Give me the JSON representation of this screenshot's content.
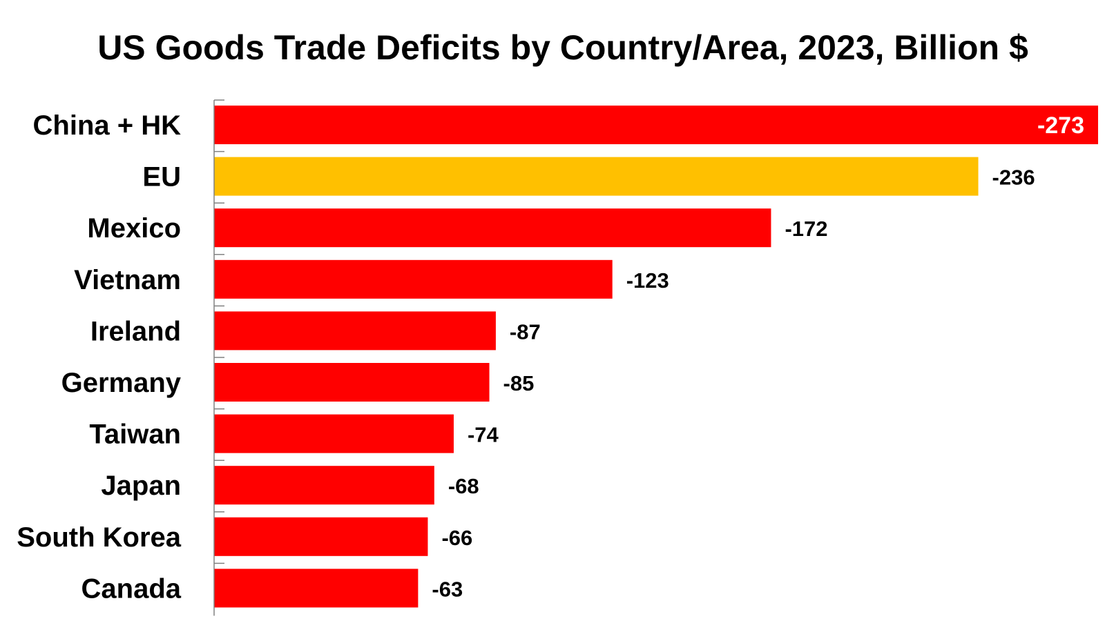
{
  "chart_data": {
    "type": "bar",
    "orientation": "horizontal",
    "title": "US Goods Trade Deficits by Country/Area, 2023, Billion $",
    "xlabel": "",
    "ylabel": "",
    "categories": [
      "China + HK",
      "EU",
      "Mexico",
      "Vietnam",
      "Ireland",
      "Germany",
      "Taiwan",
      "Japan",
      "South Korea",
      "Canada"
    ],
    "values": [
      -273,
      -236,
      -172,
      -123,
      -87,
      -85,
      -74,
      -68,
      -66,
      -63
    ],
    "data_labels": [
      "-273",
      "-236",
      "-172",
      "-123",
      "-87",
      "-85",
      "-74",
      "-68",
      "-66",
      "-63"
    ],
    "xlim": [
      0,
      -273
    ],
    "grid": false,
    "legend": "none",
    "colors": {
      "default_bar": "#ff0000",
      "highlight_bar": "#ffc000",
      "highlight_category": "EU",
      "inside_label_text": "#ffffff",
      "text": "#000000",
      "axis": "#808080"
    }
  }
}
